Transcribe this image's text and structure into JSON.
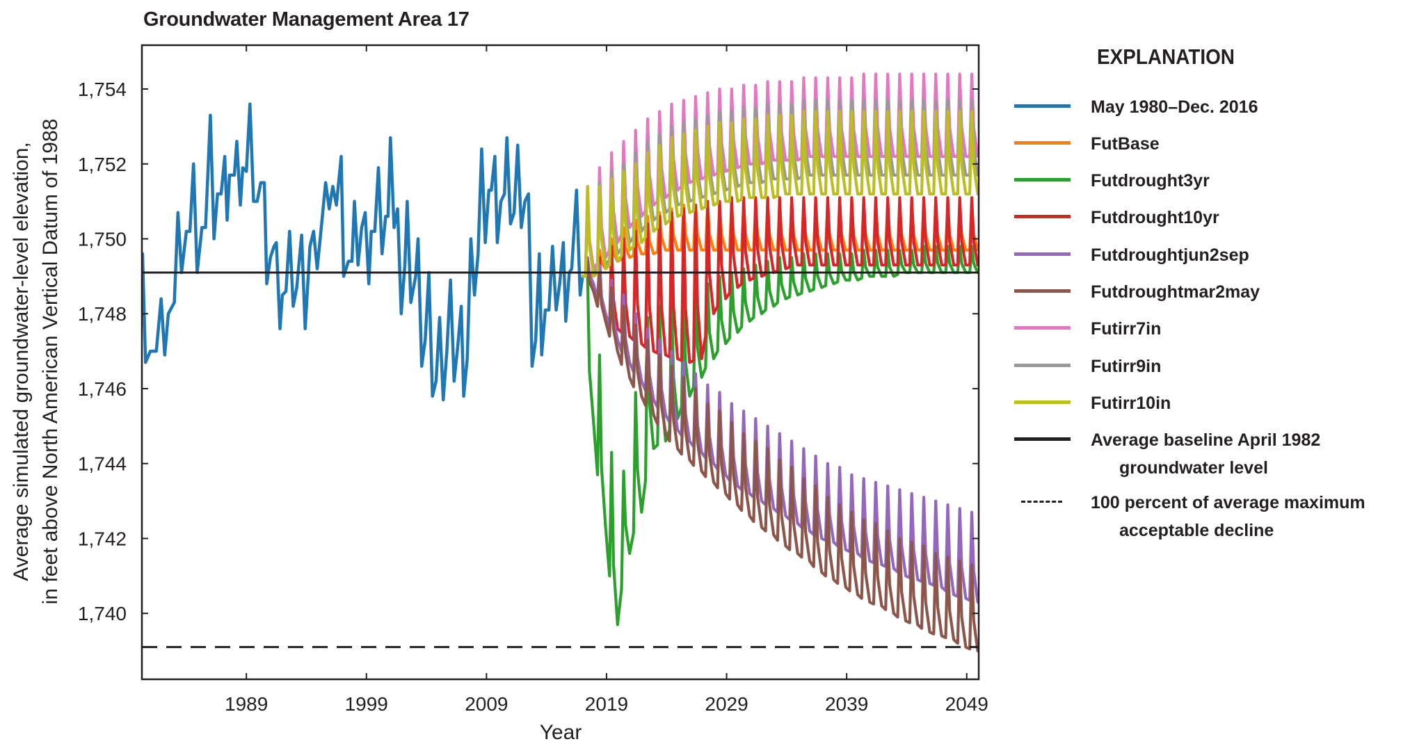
{
  "chart_data": {
    "type": "line",
    "title": "Groundwater Management Area 17",
    "xlabel": "Year",
    "ylabel": [
      "Average simulated groundwater-level elevation,",
      "in feet above North American Vertical Datum of 1988"
    ],
    "xlim": [
      1980.3,
      2050.0
    ],
    "ylim": [
      1738.24,
      1755.17
    ],
    "x_ticks": [
      1989,
      1999,
      2009,
      2019,
      2029,
      2039,
      2049
    ],
    "y_ticks": [
      1740,
      1742,
      1744,
      1746,
      1748,
      1750,
      1752,
      1754
    ],
    "y_tick_labels": [
      "1,740",
      "1,742",
      "1,744",
      "1,746",
      "1,748",
      "1,750",
      "1,752",
      "1,754"
    ],
    "grid": false,
    "legend_title": "EXPLANATION",
    "legend_placement": "right-outside",
    "historical": {
      "name": "May 1980–Dec. 2016",
      "color": "#1f77b4",
      "points": [
        [
          1980.35,
          1749.6
        ],
        [
          1980.6,
          1746.7
        ],
        [
          1981.0,
          1747.0
        ],
        [
          1981.5,
          1747.0
        ],
        [
          1981.9,
          1748.4
        ],
        [
          1982.2,
          1746.9
        ],
        [
          1982.5,
          1748.0
        ],
        [
          1983.0,
          1748.3
        ],
        [
          1983.3,
          1750.7
        ],
        [
          1983.6,
          1749.1
        ],
        [
          1984.0,
          1750.2
        ],
        [
          1984.3,
          1750.2
        ],
        [
          1984.6,
          1752.0
        ],
        [
          1984.9,
          1749.1
        ],
        [
          1985.3,
          1750.3
        ],
        [
          1985.6,
          1750.3
        ],
        [
          1986.0,
          1753.3
        ],
        [
          1986.3,
          1750.0
        ],
        [
          1986.6,
          1751.2
        ],
        [
          1986.9,
          1751.2
        ],
        [
          1987.2,
          1752.2
        ],
        [
          1987.4,
          1750.5
        ],
        [
          1987.6,
          1751.7
        ],
        [
          1988.0,
          1751.7
        ],
        [
          1988.2,
          1752.6
        ],
        [
          1988.5,
          1750.9
        ],
        [
          1988.7,
          1751.9
        ],
        [
          1989.0,
          1751.8
        ],
        [
          1989.3,
          1753.6
        ],
        [
          1989.6,
          1751.0
        ],
        [
          1989.9,
          1751.0
        ],
        [
          1990.2,
          1751.5
        ],
        [
          1990.5,
          1751.5
        ],
        [
          1990.7,
          1748.8
        ],
        [
          1991.0,
          1749.5
        ],
        [
          1991.3,
          1749.8
        ],
        [
          1991.5,
          1749.9
        ],
        [
          1991.8,
          1747.6
        ],
        [
          1992.0,
          1748.5
        ],
        [
          1992.3,
          1748.6
        ],
        [
          1992.6,
          1750.2
        ],
        [
          1992.9,
          1748.2
        ],
        [
          1993.2,
          1748.7
        ],
        [
          1993.6,
          1750.1
        ],
        [
          1993.9,
          1747.6
        ],
        [
          1994.3,
          1749.8
        ],
        [
          1994.6,
          1750.2
        ],
        [
          1994.9,
          1749.2
        ],
        [
          1995.3,
          1750.5
        ],
        [
          1995.6,
          1751.5
        ],
        [
          1995.9,
          1750.8
        ],
        [
          1996.2,
          1751.4
        ],
        [
          1996.5,
          1750.9
        ],
        [
          1996.9,
          1752.2
        ],
        [
          1997.1,
          1749.0
        ],
        [
          1997.5,
          1749.4
        ],
        [
          1997.8,
          1749.4
        ],
        [
          1998.0,
          1751.0
        ],
        [
          1998.3,
          1749.3
        ],
        [
          1998.6,
          1750.3
        ],
        [
          1998.9,
          1750.7
        ],
        [
          1999.2,
          1748.8
        ],
        [
          1999.4,
          1750.2
        ],
        [
          1999.7,
          1750.2
        ],
        [
          2000.0,
          1751.9
        ],
        [
          2000.3,
          1749.6
        ],
        [
          2000.6,
          1750.6
        ],
        [
          2000.8,
          1750.6
        ],
        [
          2001.0,
          1752.7
        ],
        [
          2001.3,
          1750.3
        ],
        [
          2001.6,
          1750.8
        ],
        [
          2001.9,
          1748.0
        ],
        [
          2002.2,
          1749.3
        ],
        [
          2002.4,
          1751.0
        ],
        [
          2002.7,
          1748.3
        ],
        [
          2003.1,
          1749.0
        ],
        [
          2003.3,
          1750.0
        ],
        [
          2003.6,
          1746.6
        ],
        [
          2003.9,
          1747.3
        ],
        [
          2004.2,
          1749.1
        ],
        [
          2004.5,
          1745.8
        ],
        [
          2004.8,
          1746.2
        ],
        [
          2005.1,
          1747.9
        ],
        [
          2005.4,
          1745.7
        ],
        [
          2005.7,
          1747.0
        ],
        [
          2006.0,
          1748.9
        ],
        [
          2006.3,
          1746.2
        ],
        [
          2006.6,
          1747.1
        ],
        [
          2006.9,
          1748.2
        ],
        [
          2007.1,
          1745.8
        ],
        [
          2007.4,
          1746.8
        ],
        [
          2007.7,
          1750.0
        ],
        [
          2008.0,
          1748.5
        ],
        [
          2008.3,
          1749.6
        ],
        [
          2008.6,
          1752.4
        ],
        [
          2008.9,
          1749.9
        ],
        [
          2009.2,
          1751.3
        ],
        [
          2009.4,
          1751.3
        ],
        [
          2009.7,
          1752.2
        ],
        [
          2009.9,
          1749.9
        ],
        [
          2010.2,
          1751.0
        ],
        [
          2010.5,
          1751.2
        ],
        [
          2010.7,
          1752.7
        ],
        [
          2011.0,
          1750.4
        ],
        [
          2011.3,
          1750.7
        ],
        [
          2011.6,
          1752.5
        ],
        [
          2011.9,
          1750.3
        ],
        [
          2012.2,
          1751.0
        ],
        [
          2012.5,
          1751.2
        ],
        [
          2012.8,
          1746.6
        ],
        [
          2013.1,
          1747.3
        ],
        [
          2013.4,
          1749.6
        ],
        [
          2013.6,
          1746.9
        ],
        [
          2013.9,
          1748.1
        ],
        [
          2014.2,
          1748.1
        ],
        [
          2014.5,
          1749.8
        ],
        [
          2014.8,
          1748.1
        ],
        [
          2015.1,
          1748.8
        ],
        [
          2015.4,
          1749.9
        ],
        [
          2015.6,
          1747.8
        ],
        [
          2015.9,
          1749.1
        ],
        [
          2016.1,
          1749.2
        ],
        [
          2016.5,
          1751.3
        ],
        [
          2016.8,
          1748.5
        ],
        [
          2017.0,
          1749.0
        ]
      ]
    },
    "scenario_years": [
      2017,
      2018,
      2019,
      2020,
      2021,
      2022,
      2023,
      2024,
      2025,
      2026,
      2027,
      2028,
      2029,
      2030,
      2031,
      2032,
      2033,
      2034,
      2035,
      2036,
      2037,
      2038,
      2039,
      2040,
      2041,
      2042,
      2043,
      2044,
      2045,
      2046,
      2047,
      2048,
      2049
    ],
    "series": [
      {
        "name": "FutBase",
        "color": "#ff7f0e",
        "annual_max": [
          1749.3,
          1749.7,
          1750.0,
          1750.3,
          1750.5,
          1750.6,
          1750.7,
          1750.8,
          1750.9,
          1750.9,
          1750.9,
          1750.9,
          1750.9,
          1750.9,
          1750.9,
          1750.9,
          1750.9,
          1750.9,
          1750.9,
          1750.9,
          1750.9,
          1750.9,
          1750.9,
          1750.9,
          1750.9,
          1750.9,
          1750.9,
          1750.9,
          1750.9,
          1750.9,
          1750.9,
          1750.9,
          1750.9
        ],
        "annual_min": [
          1749.0,
          1749.2,
          1749.4,
          1749.5,
          1749.6,
          1749.6,
          1749.7,
          1749.7,
          1749.7,
          1749.7,
          1749.7,
          1749.7,
          1749.7,
          1749.7,
          1749.7,
          1749.7,
          1749.7,
          1749.7,
          1749.7,
          1749.7,
          1749.7,
          1749.7,
          1749.7,
          1749.7,
          1749.7,
          1749.7,
          1749.7,
          1749.7,
          1749.7,
          1749.7,
          1749.7,
          1749.7,
          1749.7
        ]
      },
      {
        "name": "Futdrought3yr",
        "color": "#2ca02c",
        "annual_max": [
          1749.0,
          1746.9,
          1744.3,
          1743.8,
          1745.9,
          1747.9,
          1748.2,
          1748.3,
          1748.4,
          1748.6,
          1748.8,
          1749.0,
          1749.1,
          1749.2,
          1749.3,
          1749.4,
          1749.5,
          1749.5,
          1749.6,
          1749.6,
          1749.6,
          1749.6,
          1749.6,
          1749.7,
          1749.7,
          1749.7,
          1749.7,
          1749.7,
          1749.8,
          1749.8,
          1749.8,
          1749.8,
          1749.8
        ],
        "annual_min": [
          1745.1,
          1742.3,
          1739.7,
          1741.6,
          1742.7,
          1744.4,
          1744.6,
          1745.2,
          1745.8,
          1746.3,
          1746.8,
          1747.2,
          1747.5,
          1747.8,
          1748.0,
          1748.2,
          1748.4,
          1748.5,
          1748.6,
          1748.7,
          1748.8,
          1748.9,
          1748.9,
          1749.0,
          1749.0,
          1749.0,
          1749.1,
          1749.1,
          1749.1,
          1749.1,
          1749.1,
          1749.1,
          1749.1
        ]
      },
      {
        "name": "Futdrought10yr",
        "color": "#d62728",
        "annual_max": [
          1749.3,
          1749.5,
          1749.8,
          1750.0,
          1750.2,
          1750.4,
          1750.6,
          1750.7,
          1750.8,
          1750.9,
          1751.0,
          1751.0,
          1751.1,
          1751.1,
          1751.1,
          1751.1,
          1751.1,
          1751.1,
          1751.1,
          1751.1,
          1751.1,
          1751.1,
          1751.1,
          1751.1,
          1751.1,
          1751.1,
          1751.1,
          1751.1,
          1751.1,
          1751.1,
          1751.1,
          1751.1,
          1751.1
        ],
        "annual_min": [
          1748.6,
          1747.8,
          1747.6,
          1747.4,
          1747.2,
          1747.0,
          1746.9,
          1746.8,
          1746.7,
          1746.8,
          1748.0,
          1748.4,
          1748.7,
          1748.9,
          1749.0,
          1749.1,
          1749.2,
          1749.3,
          1749.3,
          1749.3,
          1749.3,
          1749.3,
          1749.3,
          1749.3,
          1749.3,
          1749.3,
          1749.3,
          1749.3,
          1749.3,
          1749.3,
          1749.3,
          1749.3,
          1749.3
        ]
      },
      {
        "name": "Futdroughtjun2sep",
        "color": "#9467bd",
        "annual_max": [
          1749.5,
          1749.3,
          1748.9,
          1748.5,
          1748.0,
          1747.6,
          1747.3,
          1747.0,
          1746.7,
          1746.4,
          1746.1,
          1745.9,
          1745.6,
          1745.4,
          1745.2,
          1745.0,
          1744.8,
          1744.6,
          1744.4,
          1744.2,
          1744.0,
          1743.9,
          1743.7,
          1743.6,
          1743.5,
          1743.4,
          1743.3,
          1743.2,
          1743.1,
          1743.0,
          1742.9,
          1742.8,
          1742.7
        ],
        "annual_min": [
          1748.8,
          1748.0,
          1747.3,
          1746.7,
          1746.2,
          1745.7,
          1745.3,
          1744.9,
          1744.6,
          1744.3,
          1744.0,
          1743.7,
          1743.4,
          1743.2,
          1743.0,
          1742.8,
          1742.6,
          1742.4,
          1742.2,
          1742.0,
          1741.9,
          1741.7,
          1741.6,
          1741.4,
          1741.3,
          1741.2,
          1741.0,
          1740.9,
          1740.8,
          1740.7,
          1740.5,
          1740.4,
          1740.3
        ]
      },
      {
        "name": "Futdroughtmar2may",
        "color": "#8c564b",
        "annual_max": [
          1749.4,
          1749.1,
          1748.7,
          1748.2,
          1747.7,
          1747.3,
          1746.9,
          1746.6,
          1746.3,
          1746.0,
          1745.6,
          1745.4,
          1745.1,
          1744.8,
          1744.6,
          1744.4,
          1744.1,
          1743.9,
          1743.6,
          1743.4,
          1743.1,
          1742.9,
          1742.7,
          1742.5,
          1742.4,
          1742.2,
          1742.0,
          1741.9,
          1741.8,
          1741.6,
          1741.5,
          1741.4,
          1741.3
        ],
        "annual_min": [
          1748.6,
          1747.8,
          1747.0,
          1746.3,
          1745.8,
          1745.3,
          1744.8,
          1744.4,
          1744.1,
          1743.8,
          1743.5,
          1743.2,
          1742.9,
          1742.6,
          1742.3,
          1742.1,
          1741.8,
          1741.6,
          1741.4,
          1741.1,
          1740.9,
          1740.7,
          1740.5,
          1740.3,
          1740.2,
          1740.0,
          1739.8,
          1739.7,
          1739.5,
          1739.4,
          1739.3,
          1739.1,
          1739.0
        ]
      },
      {
        "name": "Futirr7in",
        "color": "#e377c2",
        "annual_max": [
          1751.4,
          1751.9,
          1752.3,
          1752.6,
          1752.9,
          1753.2,
          1753.4,
          1753.6,
          1753.7,
          1753.8,
          1753.9,
          1754.0,
          1754.0,
          1754.1,
          1754.1,
          1754.2,
          1754.2,
          1754.2,
          1754.3,
          1754.3,
          1754.3,
          1754.3,
          1754.3,
          1754.4,
          1754.4,
          1754.4,
          1754.4,
          1754.4,
          1754.4,
          1754.4,
          1754.4,
          1754.4,
          1754.4
        ],
        "annual_min": [
          1749.2,
          1749.5,
          1749.9,
          1750.3,
          1750.6,
          1750.9,
          1751.1,
          1751.3,
          1751.5,
          1751.6,
          1751.7,
          1751.8,
          1751.9,
          1752.0,
          1752.0,
          1752.1,
          1752.1,
          1752.1,
          1752.2,
          1752.2,
          1752.2,
          1752.2,
          1752.2,
          1752.2,
          1752.2,
          1752.2,
          1752.2,
          1752.2,
          1752.2,
          1752.2,
          1752.2,
          1752.2,
          1752.2
        ]
      },
      {
        "name": "Futirr9in",
        "color": "#999999",
        "annual_max": [
          1751.2,
          1751.5,
          1751.8,
          1752.0,
          1752.3,
          1752.6,
          1752.8,
          1753.0,
          1753.1,
          1753.2,
          1753.3,
          1753.4,
          1753.4,
          1753.5,
          1753.5,
          1753.6,
          1753.6,
          1753.6,
          1753.7,
          1753.7,
          1753.7,
          1753.7,
          1753.7,
          1753.7,
          1753.7,
          1753.7,
          1753.7,
          1753.7,
          1753.7,
          1753.7,
          1753.7,
          1753.7,
          1753.7
        ],
        "annual_min": [
          1749.1,
          1749.3,
          1749.6,
          1749.9,
          1750.2,
          1750.5,
          1750.7,
          1750.9,
          1751.0,
          1751.1,
          1751.2,
          1751.3,
          1751.4,
          1751.5,
          1751.5,
          1751.6,
          1751.6,
          1751.6,
          1751.7,
          1751.7,
          1751.7,
          1751.7,
          1751.7,
          1751.7,
          1751.7,
          1751.7,
          1751.7,
          1751.7,
          1751.7,
          1751.7,
          1751.7,
          1751.7,
          1751.7
        ]
      },
      {
        "name": "Futirr10in",
        "color": "#bcbd22",
        "annual_max": [
          1751.4,
          1751.4,
          1751.6,
          1751.8,
          1752.0,
          1752.3,
          1752.5,
          1752.7,
          1752.8,
          1752.9,
          1753.0,
          1753.1,
          1753.1,
          1753.2,
          1753.2,
          1753.3,
          1753.3,
          1753.3,
          1753.4,
          1753.4,
          1753.4,
          1753.4,
          1753.4,
          1753.4,
          1753.4,
          1753.4,
          1753.4,
          1753.4,
          1753.4,
          1753.4,
          1753.4,
          1753.4,
          1753.4
        ],
        "annual_min": [
          1749.0,
          1749.2,
          1749.4,
          1749.7,
          1749.9,
          1750.2,
          1750.4,
          1750.6,
          1750.7,
          1750.8,
          1750.9,
          1751.0,
          1751.0,
          1751.1,
          1751.1,
          1751.1,
          1751.2,
          1751.2,
          1751.2,
          1751.2,
          1751.2,
          1751.2,
          1751.2,
          1751.2,
          1751.2,
          1751.2,
          1751.2,
          1751.2,
          1751.2,
          1751.2,
          1751.2,
          1751.2,
          1751.2
        ]
      }
    ],
    "reference_lines": [
      {
        "name": "Average baseline April 1982 groundwater level",
        "lines": [
          "Average baseline April 1982",
          "groundwater level"
        ],
        "value": 1749.1,
        "style": "solid",
        "color": "#231f20"
      },
      {
        "name": "100 percent of average maximum acceptable decline",
        "lines": [
          "100 percent of average maximum",
          "acceptable decline"
        ],
        "value": 1739.1,
        "style": "dashed",
        "color": "#231f20"
      }
    ]
  }
}
